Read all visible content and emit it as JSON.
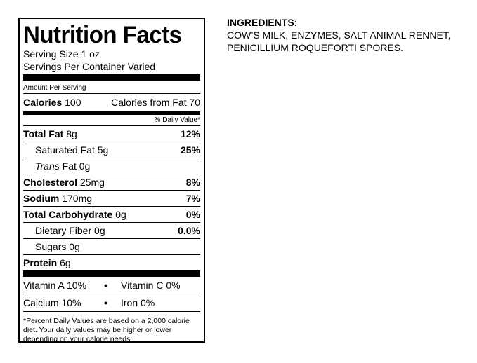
{
  "label": {
    "title": "Nutrition Facts",
    "serving_size": "Serving Size 1 oz",
    "servings_per_container": "Servings Per Container Varied",
    "amount_per_serving": "Amount Per Serving",
    "calories_label": "Calories",
    "calories_value": "100",
    "calories_from_fat": "Calories from Fat 70",
    "daily_value_header": "% Daily Value*",
    "nutrients": [
      {
        "name": "Total Fat",
        "amount": "8g",
        "dv": "12%"
      },
      {
        "name": "Saturated Fat",
        "amount": "5g",
        "dv": "25%"
      },
      {
        "name": "Trans",
        "amount": "Fat 0g",
        "dv": ""
      },
      {
        "name": "Cholesterol",
        "amount": "25mg",
        "dv": "8%"
      },
      {
        "name": "Sodium",
        "amount": "170mg",
        "dv": "7%"
      },
      {
        "name": "Total Carbohydrate",
        "amount": "0g",
        "dv": "0%"
      },
      {
        "name": "Dietary Fiber",
        "amount": "0g",
        "dv": "0.0%"
      },
      {
        "name": "Sugars",
        "amount": "0g",
        "dv": ""
      },
      {
        "name": "Protein",
        "amount": "6g",
        "dv": ""
      }
    ],
    "vitamins": [
      {
        "left": "Vitamin A 10%",
        "right": "Vitamin C 0%"
      },
      {
        "left": "Calcium 10%",
        "right": "Iron 0%"
      }
    ],
    "bullet": "•",
    "footnote": "*Percent Daily Values are based on a 2,000 calorie diet. Your daily values may be higher or lower depending on your calorie needs:"
  },
  "ingredients": {
    "title": "INGREDIENTS:",
    "text": "COW’S MILK, ENZYMES, SALT ANIMAL RENNET, PENICILLIUM ROQUEFORTI SPORES."
  }
}
